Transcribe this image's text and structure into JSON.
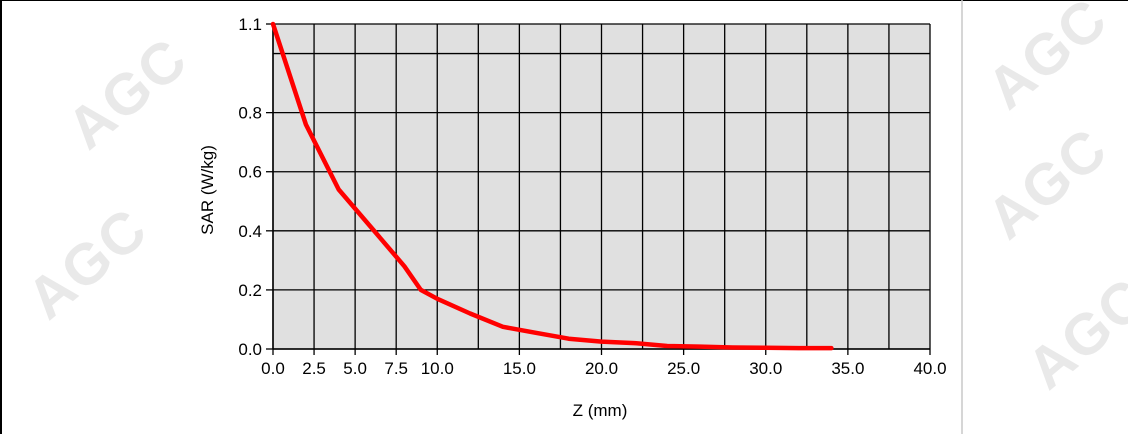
{
  "watermark": "AGC",
  "colors": {
    "plot_background": "#e0e0e0",
    "grid": "#000000",
    "series": "#ff0000",
    "border": "#000000"
  },
  "chart_data": {
    "type": "line",
    "title": "",
    "xlabel": "Z (mm)",
    "ylabel": "SAR (W/kg)",
    "xlim": [
      0,
      40
    ],
    "ylim": [
      0,
      1.1
    ],
    "x_ticks": [
      {
        "value": 0,
        "label": "0.0"
      },
      {
        "value": 2.5,
        "label": "2.5"
      },
      {
        "value": 5,
        "label": "5.0"
      },
      {
        "value": 7.5,
        "label": "7.5"
      },
      {
        "value": 10,
        "label": "10.0"
      },
      {
        "value": 15,
        "label": "15.0"
      },
      {
        "value": 20,
        "label": "20.0"
      },
      {
        "value": 25,
        "label": "25.0"
      },
      {
        "value": 30,
        "label": "30.0"
      },
      {
        "value": 35,
        "label": "35.0"
      },
      {
        "value": 40,
        "label": "40.0"
      }
    ],
    "y_ticks": [
      {
        "value": 0,
        "label": "0.0"
      },
      {
        "value": 0.2,
        "label": "0.2"
      },
      {
        "value": 0.4,
        "label": "0.4"
      },
      {
        "value": 0.6,
        "label": "0.6"
      },
      {
        "value": 0.8,
        "label": "0.8"
      },
      {
        "value": 1.1,
        "label": "1.1"
      }
    ],
    "x_grid": [
      0,
      2.5,
      5,
      7.5,
      10,
      12.5,
      15,
      17.5,
      20,
      22.5,
      25,
      27.5,
      30,
      32.5,
      35,
      37.5,
      40
    ],
    "y_grid": [
      0,
      0.2,
      0.4,
      0.6,
      0.8,
      1.0,
      1.1
    ],
    "grid": true,
    "series": [
      {
        "name": "",
        "x": [
          0,
          2,
          4,
          6,
          8,
          9,
          10,
          12,
          14,
          16,
          18,
          20,
          22,
          24,
          26,
          28,
          30,
          32,
          34
        ],
        "y": [
          1.1,
          0.76,
          0.54,
          0.41,
          0.28,
          0.2,
          0.17,
          0.12,
          0.075,
          0.055,
          0.035,
          0.025,
          0.02,
          0.01,
          0.008,
          0.005,
          0.004,
          0.003,
          0.003
        ]
      }
    ]
  }
}
